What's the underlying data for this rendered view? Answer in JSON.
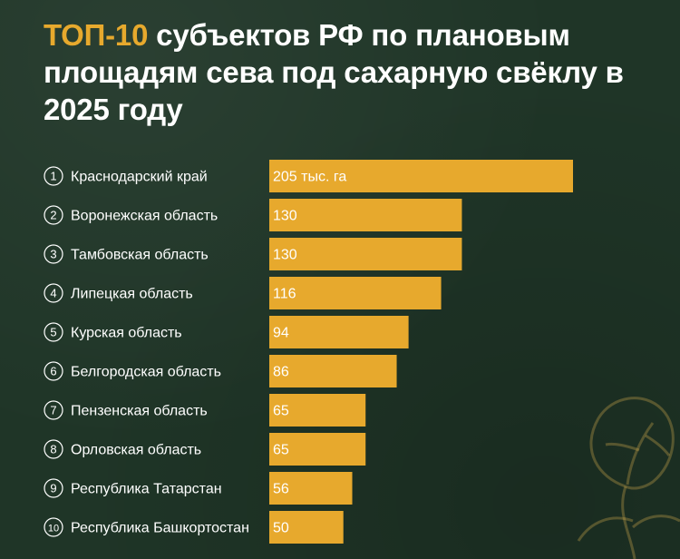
{
  "title": {
    "accent": "ТОП-10",
    "rest": " субъектов РФ по плановым площадям сева под сахарную свёклу в 2025 году"
  },
  "colors": {
    "background": "#1f3527",
    "bar": "#e7a92d",
    "accent": "#e7a92d",
    "text": "#ffffff",
    "decoration": "#c9a24a"
  },
  "chart_data": {
    "type": "bar",
    "orientation": "horizontal",
    "unit": "тыс. га",
    "ranks": [
      "1",
      "2",
      "3",
      "4",
      "5",
      "6",
      "7",
      "8",
      "9",
      "10"
    ],
    "categories": [
      "Краснодарский край",
      "Воронежская область",
      "Тамбовская область",
      "Липецкая область",
      "Курская область",
      "Белгородская область",
      "Пензенская область",
      "Орловская область",
      "Республика Татарстан",
      "Республика Башкортостан"
    ],
    "values": [
      205,
      130,
      130,
      116,
      94,
      86,
      65,
      65,
      56,
      50
    ],
    "value_labels": [
      "205 тыс. га",
      "130",
      "130",
      "116",
      "94",
      "86",
      "65",
      "65",
      "56",
      "50"
    ],
    "xlim": [
      0,
      205
    ],
    "grid": false,
    "legend": "none"
  }
}
